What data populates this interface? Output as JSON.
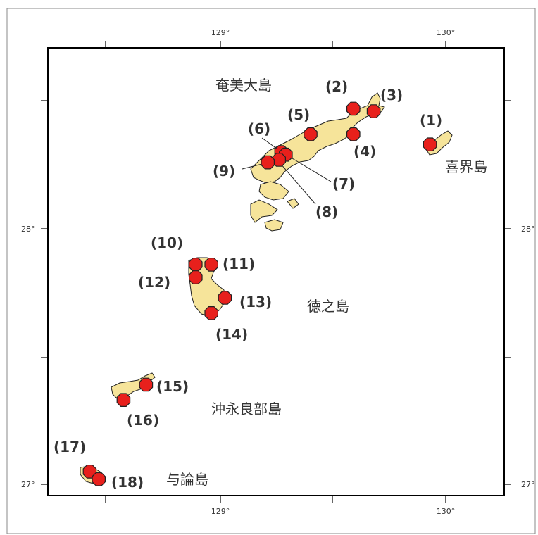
{
  "map": {
    "colors": {
      "land": "#f6e49a",
      "site": "#e8201c",
      "frame": "#000000",
      "background": "#ffffff"
    },
    "lon_ticks": [
      "129°",
      "130°"
    ],
    "lat_ticks": [
      "28°",
      "27°"
    ],
    "islands": [
      {
        "name": "奄美大島"
      },
      {
        "name": "喜界島"
      },
      {
        "name": "徳之島"
      },
      {
        "name": "沖永良部島"
      },
      {
        "name": "与論島"
      }
    ],
    "sites": [
      {
        "label": "(1)",
        "lon": 129.93,
        "lat": 28.33
      },
      {
        "label": "(2)",
        "lon": 129.59,
        "lat": 28.47
      },
      {
        "label": "(3)",
        "lon": 129.68,
        "lat": 28.46
      },
      {
        "label": "(4)",
        "lon": 129.59,
        "lat": 28.37
      },
      {
        "label": "(5)",
        "lon": 129.4,
        "lat": 28.37
      },
      {
        "label": "(6)",
        "lon": 129.27,
        "lat": 28.3
      },
      {
        "label": "(7)",
        "lon": 129.29,
        "lat": 28.29
      },
      {
        "label": "(8)",
        "lon": 129.26,
        "lat": 28.27
      },
      {
        "label": "(9)",
        "lon": 129.21,
        "lat": 28.26
      },
      {
        "label": "(10)",
        "lon": 128.89,
        "lat": 27.86
      },
      {
        "label": "(11)",
        "lon": 128.96,
        "lat": 27.86
      },
      {
        "label": "(12)",
        "lon": 128.89,
        "lat": 27.81
      },
      {
        "label": "(13)",
        "lon": 129.02,
        "lat": 27.73
      },
      {
        "label": "(14)",
        "lon": 128.96,
        "lat": 27.67
      },
      {
        "label": "(15)",
        "lon": 128.67,
        "lat": 27.39
      },
      {
        "label": "(16)",
        "lon": 128.57,
        "lat": 27.33
      },
      {
        "label": "(17)",
        "lon": 128.42,
        "lat": 27.05
      },
      {
        "label": "(18)",
        "lon": 128.46,
        "lat": 27.02
      }
    ]
  }
}
